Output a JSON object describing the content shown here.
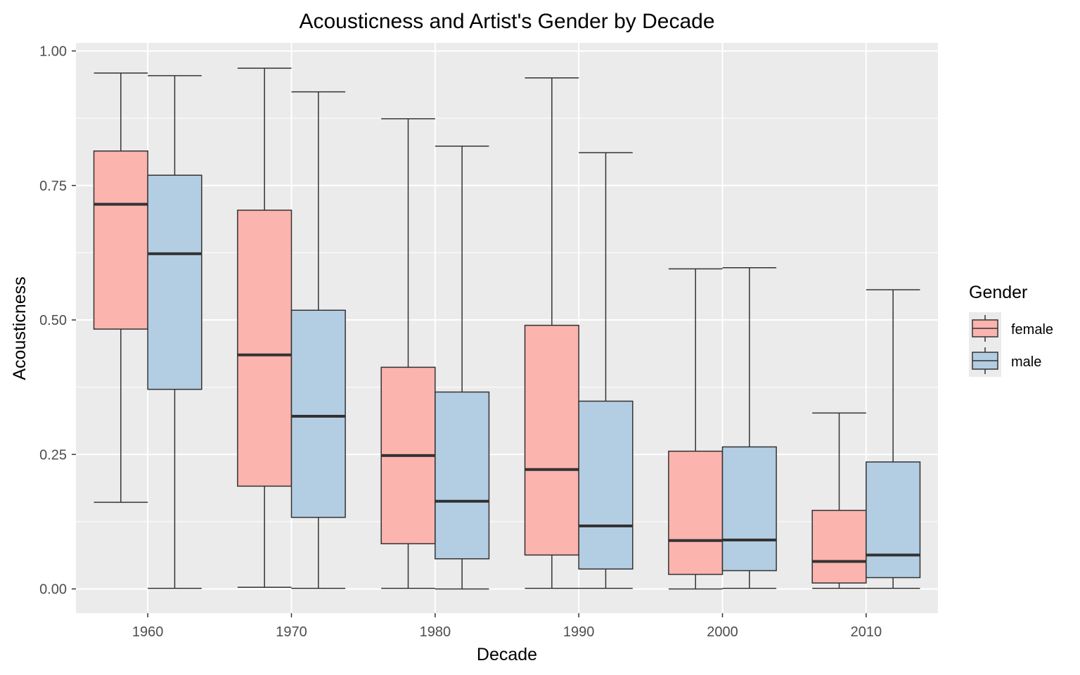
{
  "chart_data": {
    "type": "boxplot",
    "title": "Acousticness and Artist's Gender by Decade",
    "xlabel": "Decade",
    "ylabel": "Acousticness",
    "categories": [
      "1960",
      "1970",
      "1980",
      "1990",
      "2000",
      "2010"
    ],
    "ylim": [
      -0.045,
      1.015
    ],
    "yticks": [
      0.0,
      0.25,
      0.5,
      0.75,
      1.0
    ],
    "ytick_labels": [
      "0.00",
      "0.25",
      "0.50",
      "0.75",
      "1.00"
    ],
    "grid": true,
    "legend": {
      "title": "Gender",
      "position": "right"
    },
    "series": [
      {
        "name": "female",
        "color": "#fbb4ae",
        "boxes": [
          {
            "min": 0.161,
            "q1": 0.483,
            "median": 0.715,
            "q3": 0.814,
            "max": 0.959
          },
          {
            "min": 0.003,
            "q1": 0.191,
            "median": 0.435,
            "q3": 0.704,
            "max": 0.968
          },
          {
            "min": 0.001,
            "q1": 0.084,
            "median": 0.248,
            "q3": 0.412,
            "max": 0.874
          },
          {
            "min": 0.001,
            "q1": 0.063,
            "median": 0.222,
            "q3": 0.49,
            "max": 0.95
          },
          {
            "min": 0.0,
            "q1": 0.027,
            "median": 0.09,
            "q3": 0.256,
            "max": 0.595
          },
          {
            "min": 0.001,
            "q1": 0.011,
            "median": 0.051,
            "q3": 0.146,
            "max": 0.327
          }
        ]
      },
      {
        "name": "male",
        "color": "#b3cde3",
        "boxes": [
          {
            "min": 0.001,
            "q1": 0.371,
            "median": 0.623,
            "q3": 0.769,
            "max": 0.954
          },
          {
            "min": 0.001,
            "q1": 0.133,
            "median": 0.321,
            "q3": 0.518,
            "max": 0.924
          },
          {
            "min": 0.0,
            "q1": 0.056,
            "median": 0.163,
            "q3": 0.366,
            "max": 0.823
          },
          {
            "min": 0.001,
            "q1": 0.037,
            "median": 0.117,
            "q3": 0.349,
            "max": 0.811
          },
          {
            "min": 0.001,
            "q1": 0.034,
            "median": 0.091,
            "q3": 0.264,
            "max": 0.597
          },
          {
            "min": 0.001,
            "q1": 0.021,
            "median": 0.063,
            "q3": 0.236,
            "max": 0.556
          }
        ]
      }
    ]
  }
}
